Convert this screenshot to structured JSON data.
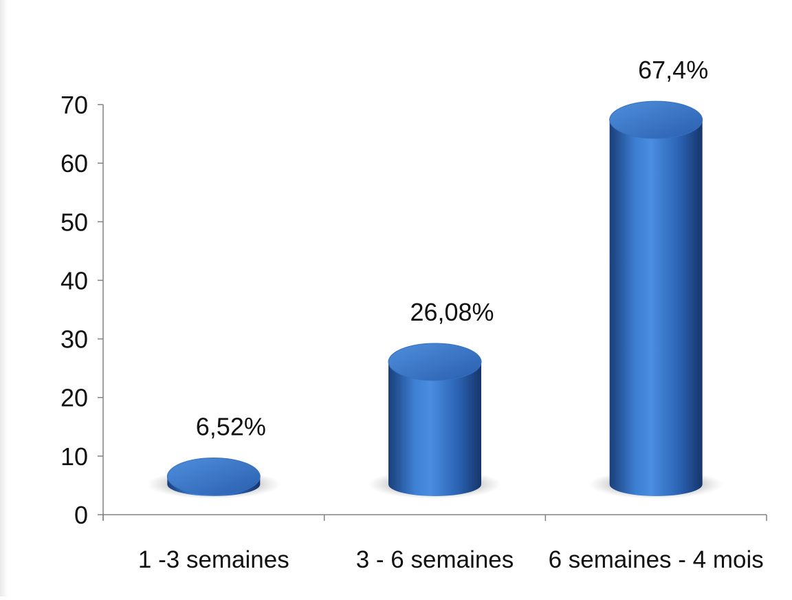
{
  "chart_data": {
    "type": "bar",
    "style": "3d-cylinder",
    "categories": [
      "1 -3 semaines",
      "3 - 6 semaines",
      "6 semaines - 4 mois"
    ],
    "values": [
      6.52,
      26.08,
      67.4
    ],
    "data_labels": [
      "6,52%",
      "26,08%",
      "67,4%"
    ],
    "ylim": [
      0,
      70
    ],
    "yticks": [
      0,
      10,
      20,
      30,
      40,
      50,
      60,
      70
    ],
    "xlabel": "",
    "ylabel": "",
    "title": "",
    "grid": false,
    "legend": "none",
    "colors": {
      "bar": "#2e6bbf",
      "bar_dark": "#1a3f7a",
      "bar_light": "#5a96e0",
      "top": "#3f7ed0",
      "axis": "#808080"
    }
  }
}
